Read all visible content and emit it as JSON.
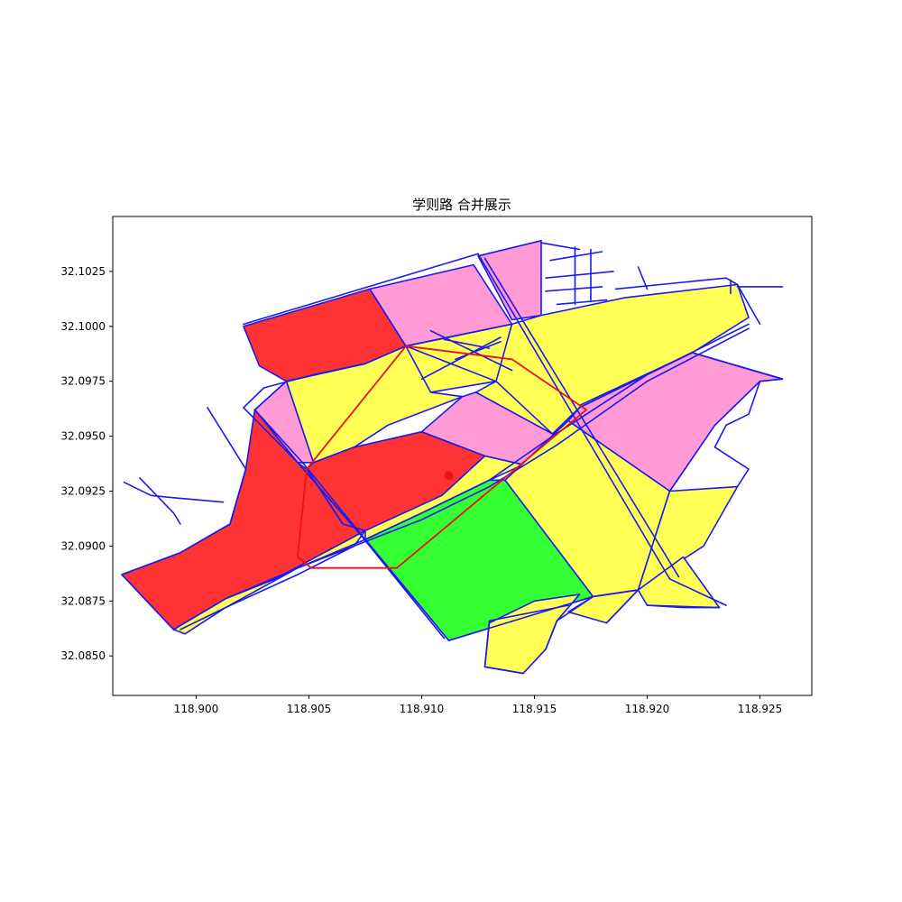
{
  "title": "学则路 合并展示",
  "colors": {
    "road": "#1a1aee",
    "residential": "#ffff55",
    "commercial": "#ff9ad5",
    "industrial": "#ff3333",
    "green": "#33ff33",
    "route": "#ee1111",
    "marker": "#ee1111"
  },
  "axes": {
    "xlim": [
      118.8963,
      118.9273
    ],
    "ylim": [
      32.0832,
      32.105
    ],
    "x_ticks": [
      {
        "value": 118.9,
        "label": "118.900"
      },
      {
        "value": 118.905,
        "label": "118.905"
      },
      {
        "value": 118.91,
        "label": "118.910"
      },
      {
        "value": 118.915,
        "label": "118.915"
      },
      {
        "value": 118.92,
        "label": "118.920"
      },
      {
        "value": 118.925,
        "label": "118.925"
      }
    ],
    "y_ticks": [
      {
        "value": 32.085,
        "label": "32.0850"
      },
      {
        "value": 32.0875,
        "label": "32.0875"
      },
      {
        "value": 32.09,
        "label": "32.0900"
      },
      {
        "value": 32.0925,
        "label": "32.0925"
      },
      {
        "value": 32.095,
        "label": "32.0950"
      },
      {
        "value": 32.0975,
        "label": "32.0975"
      },
      {
        "value": 32.1,
        "label": "32.1000"
      },
      {
        "value": 32.1025,
        "label": "32.1025"
      }
    ]
  },
  "chart_data": {
    "type": "map",
    "title": "学则路 合并展示",
    "xlim": [
      118.8963,
      118.9273
    ],
    "ylim": [
      32.0832,
      32.105
    ],
    "parcels": [
      {
        "fill": "industrial",
        "coords": [
          [
            118.9021,
            32.1
          ],
          [
            118.9077,
            32.1017
          ],
          [
            118.9093,
            32.0991
          ],
          [
            118.9075,
            32.0983
          ],
          [
            118.904,
            32.0975
          ],
          [
            118.9028,
            32.0982
          ]
        ]
      },
      {
        "fill": "commercial",
        "coords": [
          [
            118.9077,
            32.1017
          ],
          [
            118.9123,
            32.1028
          ],
          [
            118.914,
            32.1001
          ],
          [
            118.9093,
            32.0991
          ]
        ]
      },
      {
        "fill": "commercial",
        "coords": [
          [
            118.9125,
            32.1032
          ],
          [
            118.9153,
            32.1039
          ],
          [
            118.9153,
            32.1005
          ],
          [
            118.914,
            32.1003
          ]
        ]
      },
      {
        "fill": "residential",
        "coords": [
          [
            118.9093,
            32.0991
          ],
          [
            118.914,
            32.1001
          ],
          [
            118.9153,
            32.099
          ],
          [
            118.9133,
            32.0975
          ],
          [
            118.9104,
            32.097
          ],
          [
            118.9095,
            32.098
          ]
        ]
      },
      {
        "fill": "residential",
        "coords": [
          [
            118.914,
            32.1001
          ],
          [
            118.9153,
            32.1005
          ],
          [
            118.919,
            32.1013
          ],
          [
            118.924,
            32.1019
          ],
          [
            118.9245,
            32.1004
          ],
          [
            118.922,
            32.0988
          ],
          [
            118.917,
            32.0963
          ],
          [
            118.9158,
            32.0951
          ],
          [
            118.9124,
            32.097
          ],
          [
            118.9133,
            32.0975
          ]
        ]
      },
      {
        "fill": "residential",
        "coords": [
          [
            118.904,
            32.0975
          ],
          [
            118.9075,
            32.0983
          ],
          [
            118.9093,
            32.0991
          ],
          [
            118.9104,
            32.097
          ],
          [
            118.9118,
            32.0968
          ],
          [
            118.9085,
            32.0955
          ],
          [
            118.907,
            32.0945
          ],
          [
            118.9052,
            32.0938
          ]
        ]
      },
      {
        "fill": "commercial",
        "coords": [
          [
            118.9026,
            32.0962
          ],
          [
            118.904,
            32.0975
          ],
          [
            118.9052,
            32.0938
          ],
          [
            118.9045,
            32.0938
          ]
        ]
      },
      {
        "fill": "commercial",
        "coords": [
          [
            118.9118,
            32.0968
          ],
          [
            118.9124,
            32.097
          ],
          [
            118.9158,
            32.0951
          ],
          [
            118.917,
            32.0963
          ],
          [
            118.9165,
            32.0957
          ],
          [
            118.9145,
            32.0937
          ],
          [
            118.9128,
            32.0941
          ],
          [
            118.91,
            32.0952
          ]
        ]
      },
      {
        "fill": "industrial",
        "coords": [
          [
            118.9052,
            32.0938
          ],
          [
            118.907,
            32.0945
          ],
          [
            118.91,
            32.0952
          ],
          [
            118.9128,
            32.0941
          ],
          [
            118.9109,
            32.0923
          ],
          [
            118.9075,
            32.0907
          ],
          [
            118.9065,
            32.091
          ],
          [
            118.9049,
            32.0935
          ]
        ]
      },
      {
        "fill": "industrial",
        "coords": [
          [
            118.8967,
            32.0887
          ],
          [
            118.8993,
            32.0897
          ],
          [
            118.9015,
            32.091
          ],
          [
            118.9022,
            32.0935
          ],
          [
            118.9026,
            32.0962
          ],
          [
            118.9045,
            32.0938
          ],
          [
            118.9049,
            32.0935
          ],
          [
            118.9065,
            32.091
          ],
          [
            118.9075,
            32.0907
          ],
          [
            118.9055,
            32.0896
          ],
          [
            118.9035,
            32.0885
          ],
          [
            118.9013,
            32.0876
          ],
          [
            118.899,
            32.0862
          ]
        ]
      },
      {
        "fill": "residential",
        "coords": [
          [
            118.899,
            32.0862
          ],
          [
            118.9013,
            32.0876
          ],
          [
            118.9035,
            32.0885
          ],
          [
            118.9055,
            32.0896
          ],
          [
            118.9075,
            32.0907
          ],
          [
            118.907,
            32.09
          ],
          [
            118.9045,
            32.089
          ],
          [
            118.9013,
            32.0872
          ],
          [
            118.8995,
            32.086
          ]
        ]
      },
      {
        "fill": "residential",
        "coords": [
          [
            118.9075,
            32.0907
          ],
          [
            118.9109,
            32.0923
          ],
          [
            118.9128,
            32.0941
          ],
          [
            118.9145,
            32.0937
          ],
          [
            118.913,
            32.093
          ],
          [
            118.91,
            32.0915
          ],
          [
            118.9075,
            32.0903
          ]
        ]
      },
      {
        "fill": "green",
        "coords": [
          [
            118.9075,
            32.0903
          ],
          [
            118.91,
            32.0915
          ],
          [
            118.913,
            32.093
          ],
          [
            118.9137,
            32.093
          ],
          [
            118.9176,
            32.0877
          ],
          [
            118.9112,
            32.0857
          ]
        ]
      },
      {
        "fill": "commercial",
        "coords": [
          [
            118.917,
            32.0963
          ],
          [
            118.922,
            32.0988
          ],
          [
            118.926,
            32.0976
          ],
          [
            118.925,
            32.0975
          ],
          [
            118.923,
            32.0955
          ],
          [
            118.921,
            32.0925
          ]
        ]
      },
      {
        "fill": "commercial",
        "coords": [
          [
            118.9165,
            32.0957
          ],
          [
            118.921,
            32.0925
          ],
          [
            118.923,
            32.0955
          ],
          [
            118.925,
            32.0975
          ],
          [
            118.926,
            32.0976
          ],
          [
            118.922,
            32.0988
          ],
          [
            118.917,
            32.0963
          ]
        ]
      },
      {
        "fill": "residential",
        "coords": [
          [
            118.9137,
            32.093
          ],
          [
            118.9165,
            32.0957
          ],
          [
            118.921,
            32.0925
          ],
          [
            118.9196,
            32.088
          ],
          [
            118.9176,
            32.0877
          ]
        ]
      },
      {
        "fill": "residential",
        "coords": [
          [
            118.921,
            32.0925
          ],
          [
            118.924,
            32.0927
          ],
          [
            118.9225,
            32.09
          ],
          [
            118.921,
            32.089
          ],
          [
            118.9196,
            32.088
          ]
        ]
      },
      {
        "fill": "residential",
        "coords": [
          [
            118.9196,
            32.088
          ],
          [
            118.9216,
            32.0895
          ],
          [
            118.9232,
            32.0872
          ],
          [
            118.92,
            32.0873
          ]
        ]
      },
      {
        "fill": "residential",
        "coords": [
          [
            118.9176,
            32.0877
          ],
          [
            118.9196,
            32.088
          ],
          [
            118.9182,
            32.0865
          ],
          [
            118.9165,
            32.087
          ]
        ]
      },
      {
        "fill": "residential",
        "coords": [
          [
            118.915,
            32.0875
          ],
          [
            118.917,
            32.0878
          ],
          [
            118.916,
            32.0866
          ],
          [
            118.9155,
            32.0853
          ],
          [
            118.9145,
            32.0842
          ],
          [
            118.9128,
            32.0845
          ],
          [
            118.913,
            32.0865
          ]
        ]
      }
    ],
    "roads": [
      [
        [
          118.9021,
          32.1001
        ],
        [
          118.9125,
          32.1033
        ]
      ],
      [
        [
          118.9125,
          32.1033
        ],
        [
          118.921,
          32.0885
        ],
        [
          118.9235,
          32.0873
        ]
      ],
      [
        [
          118.9128,
          32.1031
        ],
        [
          118.9214,
          32.0886
        ]
      ],
      [
        [
          118.9153,
          32.1038
        ],
        [
          118.917,
          32.1035
        ]
      ],
      [
        [
          118.9157,
          32.103
        ],
        [
          118.918,
          32.1034
        ]
      ],
      [
        [
          118.9155,
          32.1022
        ],
        [
          118.9185,
          32.1025
        ]
      ],
      [
        [
          118.9155,
          32.1016
        ],
        [
          118.918,
          32.1018
        ]
      ],
      [
        [
          118.916,
          32.101
        ],
        [
          118.9182,
          32.1012
        ]
      ],
      [
        [
          118.9168,
          32.1036
        ],
        [
          118.9168,
          32.101
        ]
      ],
      [
        [
          118.9175,
          32.1035
        ],
        [
          118.9175,
          32.1012
        ]
      ],
      [
        [
          118.9196,
          32.1027
        ],
        [
          118.92,
          32.1017
        ]
      ],
      [
        [
          118.9186,
          32.1017
        ],
        [
          118.9235,
          32.1022
        ],
        [
          118.924,
          32.1019
        ]
      ],
      [
        [
          118.924,
          32.1019
        ],
        [
          118.925,
          32.1001
        ]
      ],
      [
        [
          118.924,
          32.1018
        ],
        [
          118.926,
          32.1018
        ]
      ],
      [
        [
          118.9237,
          32.1015
        ],
        [
          118.9237,
          32.1021
        ]
      ],
      [
        [
          118.9026,
          32.0962
        ],
        [
          118.904,
          32.0975
        ],
        [
          118.9075,
          32.0983
        ],
        [
          118.9093,
          32.0991
        ]
      ],
      [
        [
          118.9093,
          32.0991
        ],
        [
          118.9133,
          32.0975
        ],
        [
          118.9158,
          32.0951
        ]
      ],
      [
        [
          118.9093,
          32.0991
        ],
        [
          118.914,
          32.1001
        ]
      ],
      [
        [
          118.9104,
          32.0998
        ],
        [
          118.914,
          32.098
        ]
      ],
      [
        [
          118.911,
          32.0994
        ],
        [
          118.913,
          32.099
        ]
      ],
      [
        [
          118.9115,
          32.0985
        ],
        [
          118.9135,
          32.0993
        ]
      ],
      [
        [
          118.91,
          32.0976
        ],
        [
          118.9135,
          32.0995
        ]
      ],
      [
        [
          118.9026,
          32.0962
        ],
        [
          118.9048,
          32.0937
        ],
        [
          118.9075,
          32.0903
        ],
        [
          118.9112,
          32.0857
        ]
      ],
      [
        [
          118.9021,
          32.0963
        ],
        [
          118.9045,
          32.0938
        ],
        [
          118.9073,
          32.0905
        ],
        [
          118.911,
          32.0858
        ]
      ],
      [
        [
          118.9112,
          32.0857
        ],
        [
          118.9176,
          32.0877
        ],
        [
          118.9196,
          32.088
        ]
      ],
      [
        [
          118.9005,
          32.0963
        ],
        [
          118.9022,
          32.0935
        ],
        [
          118.9015,
          32.091
        ],
        [
          118.8993,
          32.0897
        ],
        [
          118.8967,
          32.0887
        ]
      ],
      [
        [
          118.8967,
          32.0887
        ],
        [
          118.899,
          32.0862
        ]
      ],
      [
        [
          118.899,
          32.0862
        ],
        [
          118.9013,
          32.0876
        ],
        [
          118.9045,
          32.089
        ],
        [
          118.9075,
          32.0903
        ],
        [
          118.91,
          32.0915
        ],
        [
          118.913,
          32.093
        ],
        [
          118.9158,
          32.095
        ],
        [
          118.92,
          32.0978
        ],
        [
          118.9245,
          32.1001
        ]
      ],
      [
        [
          118.8993,
          32.0862
        ],
        [
          118.9013,
          32.0872
        ],
        [
          118.9045,
          32.0887
        ],
        [
          118.907,
          32.09
        ],
        [
          118.91,
          32.0912
        ],
        [
          118.913,
          32.0927
        ],
        [
          118.916,
          32.0946
        ],
        [
          118.92,
          32.0975
        ],
        [
          118.9245,
          32.0999
        ]
      ],
      [
        [
          118.9021,
          32.0963
        ],
        [
          118.903,
          32.0972
        ],
        [
          118.9052,
          32.0978
        ],
        [
          118.9075,
          32.0983
        ]
      ],
      [
        [
          118.917,
          32.0964
        ],
        [
          118.922,
          32.0988
        ],
        [
          118.926,
          32.0976
        ]
      ],
      [
        [
          118.925,
          32.0975
        ],
        [
          118.9245,
          32.096
        ],
        [
          118.9235,
          32.0955
        ],
        [
          118.923,
          32.0945
        ],
        [
          118.9245,
          32.0935
        ],
        [
          118.924,
          32.0927
        ]
      ],
      [
        [
          118.8968,
          32.0929
        ],
        [
          118.898,
          32.0923
        ],
        [
          118.899,
          32.0922
        ],
        [
          118.9012,
          32.092
        ]
      ],
      [
        [
          118.8975,
          32.0931
        ],
        [
          118.899,
          32.0915
        ],
        [
          118.8993,
          32.091
        ]
      ],
      [
        [
          118.9145,
          32.0842
        ],
        [
          118.9128,
          32.0845
        ],
        [
          118.913,
          32.0866
        ],
        [
          118.9165,
          32.0873
        ]
      ],
      [
        [
          118.9155,
          32.0853
        ],
        [
          118.916,
          32.0866
        ],
        [
          118.9176,
          32.0877
        ]
      ],
      [
        [
          118.9182,
          32.0865
        ],
        [
          118.9196,
          32.088
        ]
      ],
      [
        [
          118.92,
          32.0873
        ],
        [
          118.9216,
          32.0872
        ],
        [
          118.9232,
          32.0872
        ]
      ]
    ],
    "route": [
      [
        118.9093,
        32.0991
      ],
      [
        118.914,
        32.0985
      ],
      [
        118.9173,
        32.0962
      ],
      [
        118.9089,
        32.089
      ],
      [
        118.9051,
        32.089
      ],
      [
        118.9045,
        32.0895
      ],
      [
        118.9049,
        32.0935
      ],
      [
        118.9093,
        32.0991
      ]
    ],
    "marker": [
      118.9112,
      32.0932
    ]
  }
}
